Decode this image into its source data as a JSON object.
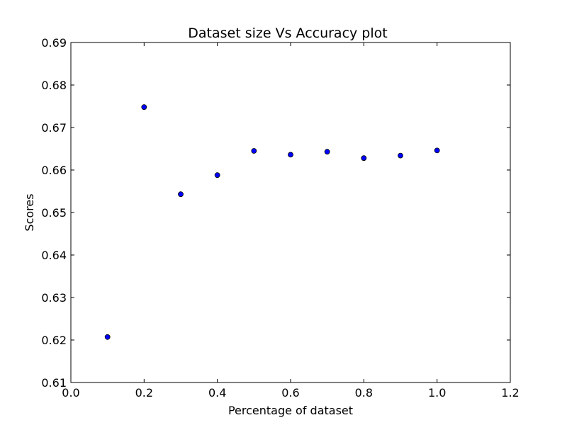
{
  "chart_data": {
    "type": "scatter",
    "title": "Dataset size Vs Accuracy plot",
    "xlabel": "Percentage of dataset",
    "ylabel": "Scores",
    "xlim": [
      0.0,
      1.2
    ],
    "ylim": [
      0.61,
      0.69
    ],
    "xticks": [
      "0.0",
      "0.2",
      "0.4",
      "0.6",
      "0.8",
      "1.0",
      "1.2"
    ],
    "yticks": [
      "0.61",
      "0.62",
      "0.63",
      "0.64",
      "0.65",
      "0.66",
      "0.67",
      "0.68",
      "0.69"
    ],
    "grid": false,
    "legend": false,
    "series": [
      {
        "x": [
          0.1,
          0.2,
          0.3,
          0.4,
          0.5,
          0.6,
          0.7,
          0.8,
          0.9,
          1.0
        ],
        "y": [
          0.6207,
          0.6748,
          0.6543,
          0.6588,
          0.6645,
          0.6636,
          0.6643,
          0.6628,
          0.6634,
          0.6646
        ],
        "color": "#0000ff"
      }
    ]
  }
}
